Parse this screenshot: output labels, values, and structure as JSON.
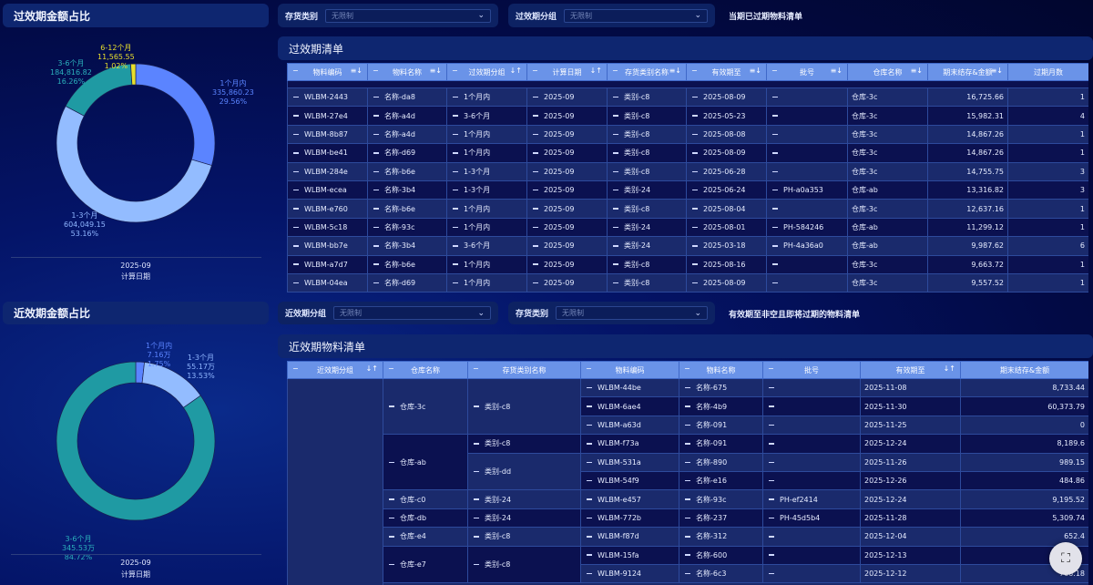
{
  "expired": {
    "pie_title": "过效期金额占比",
    "axis_value": "2025-09",
    "axis_label": "计算日期",
    "filters": [
      {
        "label": "存货类别",
        "value": "无限制"
      },
      {
        "label": "过效期分组",
        "value": "无限制"
      }
    ],
    "note": "当期已过期物料清单",
    "table_title": "过效期清单",
    "columns": [
      "物料编码",
      "物料名称",
      "过效期分组",
      "计算日期",
      "存货类别名称",
      "有效期至",
      "批号",
      "仓库名称",
      "期末结存&金额",
      "过期月数"
    ],
    "rows": [
      [
        "WLBM-2443",
        "名称-da8",
        "1个月内",
        "2025-09",
        "类别-c8",
        "2025-08-09",
        "",
        "仓库-3c",
        "16,725.66",
        "1"
      ],
      [
        "WLBM-27e4",
        "名称-a4d",
        "3-6个月",
        "2025-09",
        "类别-c8",
        "2025-05-23",
        "",
        "仓库-3c",
        "15,982.31",
        "4"
      ],
      [
        "WLBM-8b87",
        "名称-a4d",
        "1个月内",
        "2025-09",
        "类别-c8",
        "2025-08-08",
        "",
        "仓库-3c",
        "14,867.26",
        "1"
      ],
      [
        "WLBM-be41",
        "名称-d69",
        "1个月内",
        "2025-09",
        "类别-c8",
        "2025-08-09",
        "",
        "仓库-3c",
        "14,867.26",
        "1"
      ],
      [
        "WLBM-284e",
        "名称-b6e",
        "1-3个月",
        "2025-09",
        "类别-c8",
        "2025-06-28",
        "",
        "仓库-3c",
        "14,755.75",
        "3"
      ],
      [
        "WLBM-ecea",
        "名称-3b4",
        "1-3个月",
        "2025-09",
        "类别-24",
        "2025-06-24",
        "PH-a0a353",
        "仓库-ab",
        "13,316.82",
        "3"
      ],
      [
        "WLBM-e760",
        "名称-b6e",
        "1个月内",
        "2025-09",
        "类别-c8",
        "2025-08-04",
        "",
        "仓库-3c",
        "12,637.16",
        "1"
      ],
      [
        "WLBM-5c18",
        "名称-93c",
        "1个月内",
        "2025-09",
        "类别-24",
        "2025-08-01",
        "PH-584246",
        "仓库-ab",
        "11,299.12",
        "1"
      ],
      [
        "WLBM-bb7e",
        "名称-3b4",
        "3-6个月",
        "2025-09",
        "类别-24",
        "2025-03-18",
        "PH-4a36a0",
        "仓库-ab",
        "9,987.62",
        "6"
      ],
      [
        "WLBM-a7d7",
        "名称-b6e",
        "1个月内",
        "2025-09",
        "类别-c8",
        "2025-08-16",
        "",
        "仓库-3c",
        "9,663.72",
        "1"
      ],
      [
        "WLBM-04ea",
        "名称-d69",
        "1个月内",
        "2025-09",
        "类别-c8",
        "2025-08-09",
        "",
        "仓库-3c",
        "9,557.52",
        "1"
      ]
    ]
  },
  "near": {
    "pie_title": "近效期金额占比",
    "axis_value": "2025-09",
    "axis_label": "计算日期",
    "filters": [
      {
        "label": "近效期分组",
        "value": "无限制"
      },
      {
        "label": "存货类别",
        "value": "无限制"
      }
    ],
    "note": "有效期至非空且即将过期的物料清单",
    "table_title": "近效期物料清单",
    "columns": [
      "近效期分组",
      "仓库名称",
      "存货类别名称",
      "物料编码",
      "物料名称",
      "批号",
      "有效期至",
      "期末结存&金额"
    ],
    "rows": [
      {
        "wh": "仓库-3c",
        "cat": "类别-c8",
        "code": "WLBM-44be",
        "name": "名称-675",
        "batch": "",
        "exp": "2025-11-08",
        "amt": "8,733.44"
      },
      {
        "code": "WLBM-6ae4",
        "name": "名称-4b9",
        "batch": "",
        "exp": "2025-11-30",
        "amt": "60,373.79"
      },
      {
        "code": "WLBM-a63d",
        "name": "名称-091",
        "batch": "",
        "exp": "2025-11-25",
        "amt": "0"
      },
      {
        "wh": "仓库-ab",
        "cat": "类别-c8",
        "code": "WLBM-f73a",
        "name": "名称-091",
        "batch": "",
        "exp": "2025-12-24",
        "amt": "8,189.6"
      },
      {
        "cat": "类别-dd",
        "code": "WLBM-531a",
        "name": "名称-890",
        "batch": "",
        "exp": "2025-11-26",
        "amt": "989.15"
      },
      {
        "code": "WLBM-54f9",
        "name": "名称-e16",
        "batch": "",
        "exp": "2025-12-26",
        "amt": "484.86"
      },
      {
        "wh": "仓库-c0",
        "cat": "类别-24",
        "code": "WLBM-e457",
        "name": "名称-93c",
        "batch": "PH-ef2414",
        "exp": "2025-12-24",
        "amt": "9,195.52"
      },
      {
        "wh": "仓库-db",
        "cat": "类别-24",
        "code": "WLBM-772b",
        "name": "名称-237",
        "batch": "PH-45d5b4",
        "exp": "2025-11-28",
        "amt": "5,309.74"
      },
      {
        "wh": "仓库-e4",
        "cat": "类别-c8",
        "code": "WLBM-f87d",
        "name": "名称-312",
        "batch": "",
        "exp": "2025-12-04",
        "amt": "652.4"
      },
      {
        "wh": "仓库-e7",
        "cat": "类别-c8",
        "code": "WLBM-15fa",
        "name": "名称-600",
        "batch": "",
        "exp": "2025-12-13",
        "amt": ""
      },
      {
        "code": "WLBM-9124",
        "name": "名称-6c3",
        "batch": "",
        "exp": "2025-12-12",
        "amt": "766.18"
      }
    ]
  },
  "chart_data": [
    {
      "type": "pie",
      "donut": true,
      "categories": [
        "1个月内",
        "1-3个月",
        "3-6个月",
        "6-12个月"
      ],
      "values": [
        335860.23,
        604049.15,
        184816.82,
        11565.55
      ],
      "value_labels": [
        "335,860.23",
        "604,049.15",
        "184,816.82",
        "11,565.55"
      ],
      "percent_labels": [
        "29.56%",
        "53.16%",
        "16.26%",
        "1.02%"
      ],
      "colors": [
        "#5b84ff",
        "#93bcff",
        "#1f9aa3",
        "#e8df2c"
      ]
    },
    {
      "type": "pie",
      "donut": true,
      "categories": [
        "1个月内",
        "1-3个月",
        "3-6个月"
      ],
      "values": [
        71600,
        551700,
        3455300
      ],
      "value_labels": [
        "7.16万",
        "55.17万",
        "345.53万"
      ],
      "percent_labels": [
        "1.75%",
        "13.53%",
        "84.72%"
      ],
      "colors": [
        "#5b84ff",
        "#93bcff",
        "#1f9aa3"
      ]
    }
  ]
}
